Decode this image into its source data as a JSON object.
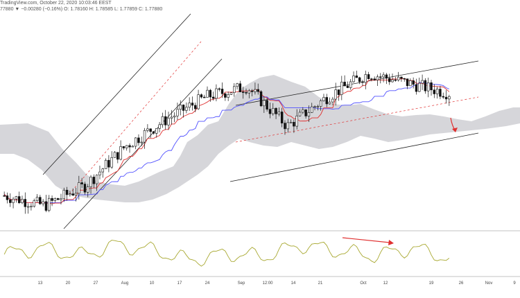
{
  "header": {
    "line1": "TradingView.com, October 22, 2020 10:03:46 EEST",
    "line2": "77880 ▼ −0.00280 (−0.16%) O: 1.78160 H: 1.78585 L: 1.77859 C: 1.77880"
  },
  "colors": {
    "candle_up": "#ffffff",
    "candle_down": "#111111",
    "candle_border": "#111111",
    "conversion_line": "#e03030",
    "base_line": "#5050ff",
    "cloud": "#cfcfd4",
    "channel": "#222222",
    "rsi_line": "#a8a830",
    "annotation": "#e03030"
  },
  "chart_data": {
    "type": "candlestick",
    "indicators": [
      "Ichimoku Kinko Hyo",
      "Oscillator"
    ],
    "x_tick_labels": [
      "13",
      "20",
      "27",
      "Aug",
      "10",
      "17",
      "24",
      "Sep",
      "12:00",
      "14",
      "21",
      "Oct",
      "12",
      "19",
      "26",
      "Nov",
      "9"
    ],
    "candle_trend_close": [
      1.745,
      1.742,
      1.748,
      1.76,
      1.768,
      1.775,
      1.778,
      1.766,
      1.775,
      1.782,
      1.779,
      1.776
    ],
    "oscillator_close": [
      49,
      58,
      47,
      62,
      55,
      41,
      50,
      46,
      62,
      54,
      47,
      58,
      44
    ],
    "annotations": [
      {
        "kind": "arrow",
        "label": "",
        "target": "price down"
      },
      {
        "kind": "arrow",
        "label": "",
        "target": "oscillator divergence"
      }
    ],
    "grid": false
  }
}
